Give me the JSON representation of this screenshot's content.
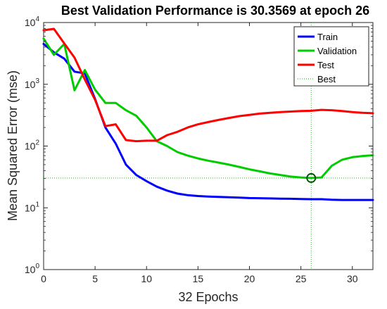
{
  "chart_data": {
    "type": "line",
    "title": "Best Validation Performance is 30.3569 at epoch 26",
    "xlabel": "32 Epochs",
    "ylabel": "Mean Squared Error  (mse)",
    "xlim": [
      0,
      32
    ],
    "ylim": [
      1,
      10000
    ],
    "yscale": "log",
    "xticks": [
      0,
      5,
      10,
      15,
      20,
      25,
      30
    ],
    "yticks": [
      {
        "value": 1,
        "base": "10",
        "exp": "0"
      },
      {
        "value": 10,
        "base": "10",
        "exp": "1"
      },
      {
        "value": 100,
        "base": "10",
        "exp": "2"
      },
      {
        "value": 1000,
        "base": "10",
        "exp": "3"
      },
      {
        "value": 10000,
        "base": "10",
        "exp": "4"
      }
    ],
    "grid": false,
    "legend_position": "top-right",
    "x": [
      0,
      1,
      2,
      3,
      4,
      5,
      6,
      7,
      8,
      9,
      10,
      11,
      12,
      13,
      14,
      15,
      16,
      17,
      18,
      19,
      20,
      21,
      22,
      23,
      24,
      25,
      26,
      27,
      28,
      29,
      30,
      31,
      32
    ],
    "series": [
      {
        "name": "Train",
        "color": "#0000ff",
        "values": [
          4500,
          3300,
          2600,
          1600,
          1500,
          580,
          200,
          110,
          50,
          34,
          27,
          22,
          19,
          17,
          16,
          15.5,
          15.2,
          15,
          14.8,
          14.6,
          14.4,
          14.3,
          14.2,
          14.1,
          14,
          13.9,
          13.8,
          13.8,
          13.5,
          13.4,
          13.4,
          13.4,
          13.4
        ]
      },
      {
        "name": "Validation",
        "color": "#00cc00",
        "values": [
          5500,
          3000,
          4500,
          800,
          1700,
          820,
          500,
          500,
          380,
          310,
          200,
          120,
          100,
          80,
          70,
          63,
          58,
          54,
          50,
          46,
          42,
          39,
          36,
          34,
          32,
          31,
          30.36,
          31,
          48,
          60,
          66,
          69,
          71
        ]
      },
      {
        "name": "Test",
        "color": "#ff0000",
        "values": [
          7500,
          7900,
          4600,
          2700,
          1200,
          560,
          210,
          225,
          125,
          120,
          122,
          122,
          150,
          170,
          200,
          225,
          245,
          265,
          285,
          305,
          320,
          335,
          345,
          355,
          362,
          368,
          372,
          385,
          380,
          368,
          355,
          345,
          340
        ]
      }
    ],
    "best": {
      "name": "Best",
      "color": "#00aa00",
      "epoch": 26,
      "value": 30.3569
    }
  }
}
